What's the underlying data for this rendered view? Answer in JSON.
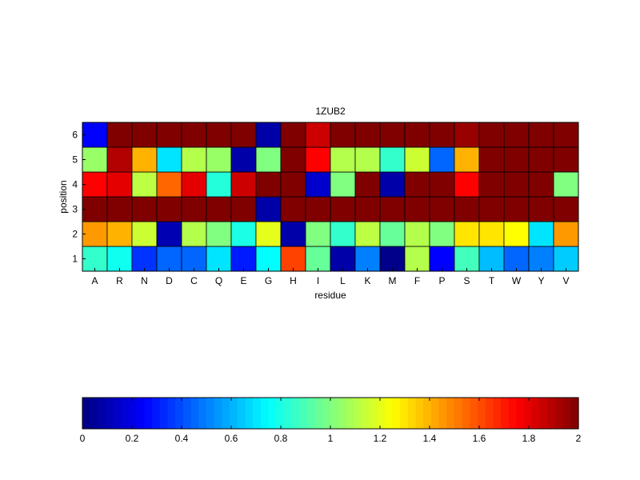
{
  "chart_data": {
    "type": "heatmap",
    "title": "1ZUB2",
    "xlabel": "residue",
    "ylabel": "position",
    "x_categories": [
      "A",
      "R",
      "N",
      "D",
      "C",
      "Q",
      "E",
      "G",
      "H",
      "I",
      "L",
      "K",
      "M",
      "F",
      "P",
      "S",
      "T",
      "W",
      "Y",
      "V"
    ],
    "y_categories": [
      "1",
      "2",
      "3",
      "4",
      "5",
      "6"
    ],
    "values": [
      [
        0.85,
        0.78,
        0.35,
        0.45,
        0.45,
        0.7,
        0.3,
        0.75,
        1.62,
        0.95,
        0.08,
        0.5,
        0.02,
        1.1,
        0.25,
        0.88,
        0.62,
        0.45,
        0.5,
        0.65
      ],
      [
        1.45,
        1.4,
        1.15,
        0.1,
        1.1,
        1.0,
        0.8,
        1.2,
        0.08,
        1.0,
        0.85,
        1.12,
        0.95,
        1.1,
        1.0,
        1.3,
        1.3,
        1.25,
        0.7,
        1.45
      ],
      [
        2.0,
        2.0,
        2.0,
        2.0,
        2.0,
        2.0,
        2.0,
        0.08,
        2.0,
        2.0,
        2.0,
        2.0,
        2.0,
        2.0,
        2.0,
        2.0,
        2.0,
        2.0,
        2.0,
        2.0
      ],
      [
        1.75,
        1.8,
        1.12,
        1.55,
        1.8,
        0.82,
        1.85,
        2.0,
        2.0,
        0.15,
        1.0,
        2.0,
        0.08,
        2.0,
        2.0,
        1.75,
        2.0,
        2.0,
        2.0,
        1.0
      ],
      [
        1.05,
        1.9,
        1.4,
        0.7,
        1.1,
        1.05,
        0.08,
        1.0,
        2.0,
        1.75,
        1.1,
        1.1,
        0.85,
        1.15,
        0.45,
        1.4,
        2.0,
        2.0,
        2.0,
        2.0
      ],
      [
        0.25,
        2.0,
        2.0,
        2.0,
        2.0,
        2.0,
        2.0,
        0.08,
        2.0,
        1.85,
        2.0,
        2.0,
        2.0,
        2.0,
        2.0,
        1.95,
        2.0,
        2.0,
        2.0,
        2.0
      ]
    ],
    "colorbar": {
      "range": [
        0,
        2
      ],
      "ticks": [
        "0",
        "0.2",
        "0.4",
        "0.6",
        "0.8",
        "1",
        "1.2",
        "1.4",
        "1.6",
        "1.8",
        "2"
      ]
    },
    "colormap": "jet",
    "grid": false,
    "legend": "none"
  }
}
